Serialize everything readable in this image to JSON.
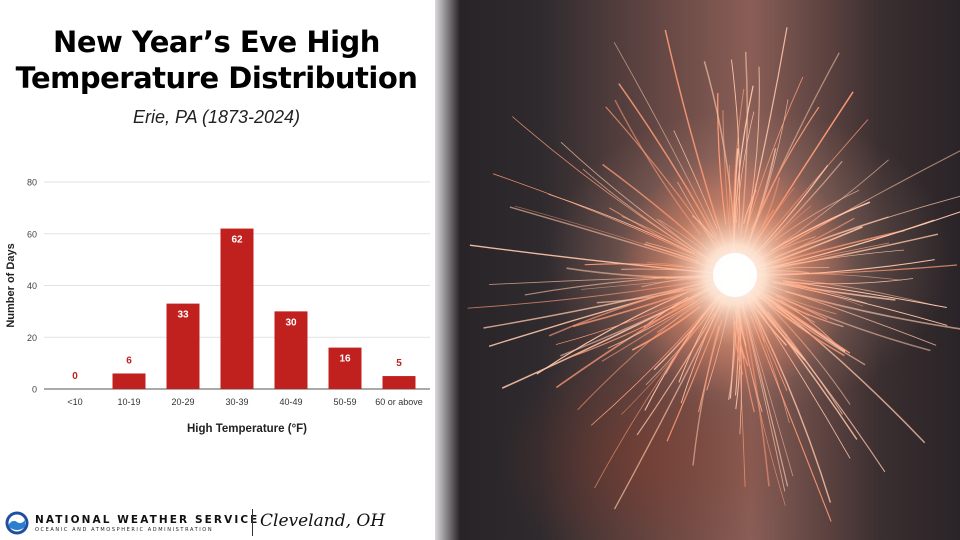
{
  "title_line1": "New Year’s Eve High",
  "title_line2": "Temperature Distribution",
  "subtitle": "Erie, PA (1873-2024)",
  "colors": {
    "bar": "#c0211f",
    "label_outside": "#c0211f",
    "label_inside": "#ffffff",
    "grid": "#e2e2e2"
  },
  "chart_data": {
    "type": "bar",
    "categories": [
      "<10",
      "10-19",
      "20-29",
      "30-39",
      "40-49",
      "50-59",
      "60 or above"
    ],
    "values": [
      0,
      6,
      33,
      62,
      30,
      16,
      5
    ],
    "xlabel": "High Temperature (°F)",
    "ylabel": "Number of Days",
    "ylim": [
      0,
      80
    ],
    "yticks": [
      0,
      20,
      40,
      60,
      80
    ],
    "grid": true,
    "legend": "none"
  },
  "footer": {
    "org_name": "NATIONAL WEATHER SERVICE",
    "org_sub": "OCEANIC AND ATMOSPHERIC ADMINISTRATION",
    "office": "Cleveland, OH"
  },
  "photo": {
    "subject": "sparkler-image"
  }
}
